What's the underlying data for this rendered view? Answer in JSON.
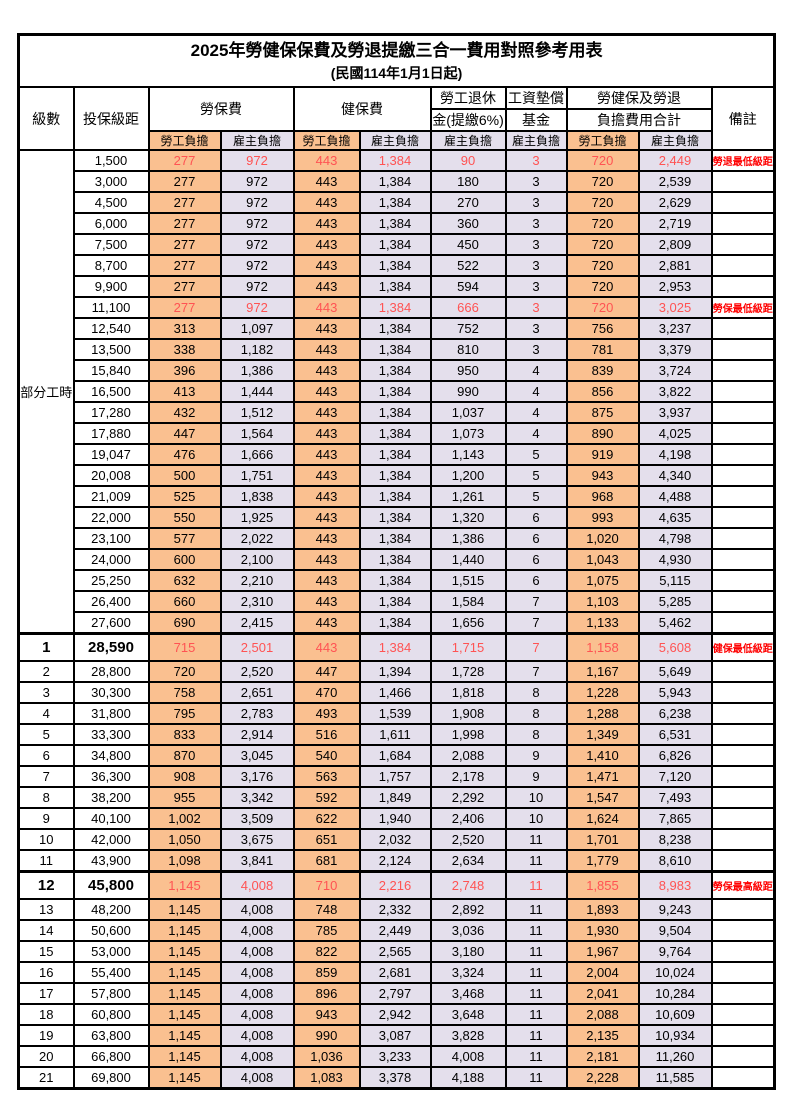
{
  "title": "2025年勞健保保費及勞退提繳三合一費用對照參考用表",
  "subtitle": "(民國114年1月1日起)",
  "columns": {
    "level": "級數",
    "bracket": "投保級距",
    "labor_insurance": "勞保費",
    "health_insurance": "健保費",
    "pension_line1": "勞工退休",
    "pension_line2": "金(提繳6%)",
    "wage_fund_line1": "工資墊償",
    "wage_fund_line2": "基金",
    "total_line1": "勞健保及勞退",
    "total_line2": "負擔費用合計",
    "note": "備註",
    "employee": "勞工負擔",
    "employer": "雇主負擔"
  },
  "part_time_label": "部分工時",
  "part_time_rowspan": 23,
  "colors": {
    "employee_bg": "#FAC090",
    "employer_bg": "#E4DFEC",
    "highlight_text": "#FF5353",
    "note_text": "#FF0000",
    "grid": "#000000"
  },
  "rows": [
    {
      "level": "",
      "bracket": "1,500",
      "values": [
        "277",
        "972",
        "443",
        "1,384",
        "90",
        "3",
        "720",
        "2,449"
      ],
      "note": "勞退最低級距",
      "highlight": true,
      "emphasis": false
    },
    {
      "level": "",
      "bracket": "3,000",
      "values": [
        "277",
        "972",
        "443",
        "1,384",
        "180",
        "3",
        "720",
        "2,539"
      ],
      "note": "",
      "highlight": false,
      "emphasis": false
    },
    {
      "level": "",
      "bracket": "4,500",
      "values": [
        "277",
        "972",
        "443",
        "1,384",
        "270",
        "3",
        "720",
        "2,629"
      ],
      "note": "",
      "highlight": false,
      "emphasis": false
    },
    {
      "level": "",
      "bracket": "6,000",
      "values": [
        "277",
        "972",
        "443",
        "1,384",
        "360",
        "3",
        "720",
        "2,719"
      ],
      "note": "",
      "highlight": false,
      "emphasis": false
    },
    {
      "level": "",
      "bracket": "7,500",
      "values": [
        "277",
        "972",
        "443",
        "1,384",
        "450",
        "3",
        "720",
        "2,809"
      ],
      "note": "",
      "highlight": false,
      "emphasis": false
    },
    {
      "level": "",
      "bracket": "8,700",
      "values": [
        "277",
        "972",
        "443",
        "1,384",
        "522",
        "3",
        "720",
        "2,881"
      ],
      "note": "",
      "highlight": false,
      "emphasis": false
    },
    {
      "level": "",
      "bracket": "9,900",
      "values": [
        "277",
        "972",
        "443",
        "1,384",
        "594",
        "3",
        "720",
        "2,953"
      ],
      "note": "",
      "highlight": false,
      "emphasis": false
    },
    {
      "level": "",
      "bracket": "11,100",
      "values": [
        "277",
        "972",
        "443",
        "1,384",
        "666",
        "3",
        "720",
        "3,025"
      ],
      "note": "勞保最低級距",
      "highlight": true,
      "emphasis": false
    },
    {
      "level": "",
      "bracket": "12,540",
      "values": [
        "313",
        "1,097",
        "443",
        "1,384",
        "752",
        "3",
        "756",
        "3,237"
      ],
      "note": "",
      "highlight": false,
      "emphasis": false
    },
    {
      "level": "",
      "bracket": "13,500",
      "values": [
        "338",
        "1,182",
        "443",
        "1,384",
        "810",
        "3",
        "781",
        "3,379"
      ],
      "note": "",
      "highlight": false,
      "emphasis": false
    },
    {
      "level": "",
      "bracket": "15,840",
      "values": [
        "396",
        "1,386",
        "443",
        "1,384",
        "950",
        "4",
        "839",
        "3,724"
      ],
      "note": "",
      "highlight": false,
      "emphasis": false
    },
    {
      "level": "",
      "bracket": "16,500",
      "values": [
        "413",
        "1,444",
        "443",
        "1,384",
        "990",
        "4",
        "856",
        "3,822"
      ],
      "note": "",
      "highlight": false,
      "emphasis": false
    },
    {
      "level": "",
      "bracket": "17,280",
      "values": [
        "432",
        "1,512",
        "443",
        "1,384",
        "1,037",
        "4",
        "875",
        "3,937"
      ],
      "note": "",
      "highlight": false,
      "emphasis": false
    },
    {
      "level": "",
      "bracket": "17,880",
      "values": [
        "447",
        "1,564",
        "443",
        "1,384",
        "1,073",
        "4",
        "890",
        "4,025"
      ],
      "note": "",
      "highlight": false,
      "emphasis": false
    },
    {
      "level": "",
      "bracket": "19,047",
      "values": [
        "476",
        "1,666",
        "443",
        "1,384",
        "1,143",
        "5",
        "919",
        "4,198"
      ],
      "note": "",
      "highlight": false,
      "emphasis": false
    },
    {
      "level": "",
      "bracket": "20,008",
      "values": [
        "500",
        "1,751",
        "443",
        "1,384",
        "1,200",
        "5",
        "943",
        "4,340"
      ],
      "note": "",
      "highlight": false,
      "emphasis": false
    },
    {
      "level": "",
      "bracket": "21,009",
      "values": [
        "525",
        "1,838",
        "443",
        "1,384",
        "1,261",
        "5",
        "968",
        "4,488"
      ],
      "note": "",
      "highlight": false,
      "emphasis": false
    },
    {
      "level": "",
      "bracket": "22,000",
      "values": [
        "550",
        "1,925",
        "443",
        "1,384",
        "1,320",
        "6",
        "993",
        "4,635"
      ],
      "note": "",
      "highlight": false,
      "emphasis": false
    },
    {
      "level": "",
      "bracket": "23,100",
      "values": [
        "577",
        "2,022",
        "443",
        "1,384",
        "1,386",
        "6",
        "1,020",
        "4,798"
      ],
      "note": "",
      "highlight": false,
      "emphasis": false
    },
    {
      "level": "",
      "bracket": "24,000",
      "values": [
        "600",
        "2,100",
        "443",
        "1,384",
        "1,440",
        "6",
        "1,043",
        "4,930"
      ],
      "note": "",
      "highlight": false,
      "emphasis": false
    },
    {
      "level": "",
      "bracket": "25,250",
      "values": [
        "632",
        "2,210",
        "443",
        "1,384",
        "1,515",
        "6",
        "1,075",
        "5,115"
      ],
      "note": "",
      "highlight": false,
      "emphasis": false
    },
    {
      "level": "",
      "bracket": "26,400",
      "values": [
        "660",
        "2,310",
        "443",
        "1,384",
        "1,584",
        "7",
        "1,103",
        "5,285"
      ],
      "note": "",
      "highlight": false,
      "emphasis": false
    },
    {
      "level": "",
      "bracket": "27,600",
      "values": [
        "690",
        "2,415",
        "443",
        "1,384",
        "1,656",
        "7",
        "1,133",
        "5,462"
      ],
      "note": "",
      "highlight": false,
      "emphasis": false
    },
    {
      "level": "1",
      "bracket": "28,590",
      "values": [
        "715",
        "2,501",
        "443",
        "1,384",
        "1,715",
        "7",
        "1,158",
        "5,608"
      ],
      "note": "健保最低級距",
      "highlight": true,
      "emphasis": true
    },
    {
      "level": "2",
      "bracket": "28,800",
      "values": [
        "720",
        "2,520",
        "447",
        "1,394",
        "1,728",
        "7",
        "1,167",
        "5,649"
      ],
      "note": "",
      "highlight": false,
      "emphasis": false
    },
    {
      "level": "3",
      "bracket": "30,300",
      "values": [
        "758",
        "2,651",
        "470",
        "1,466",
        "1,818",
        "8",
        "1,228",
        "5,943"
      ],
      "note": "",
      "highlight": false,
      "emphasis": false
    },
    {
      "level": "4",
      "bracket": "31,800",
      "values": [
        "795",
        "2,783",
        "493",
        "1,539",
        "1,908",
        "8",
        "1,288",
        "6,238"
      ],
      "note": "",
      "highlight": false,
      "emphasis": false
    },
    {
      "level": "5",
      "bracket": "33,300",
      "values": [
        "833",
        "2,914",
        "516",
        "1,611",
        "1,998",
        "8",
        "1,349",
        "6,531"
      ],
      "note": "",
      "highlight": false,
      "emphasis": false
    },
    {
      "level": "6",
      "bracket": "34,800",
      "values": [
        "870",
        "3,045",
        "540",
        "1,684",
        "2,088",
        "9",
        "1,410",
        "6,826"
      ],
      "note": "",
      "highlight": false,
      "emphasis": false
    },
    {
      "level": "7",
      "bracket": "36,300",
      "values": [
        "908",
        "3,176",
        "563",
        "1,757",
        "2,178",
        "9",
        "1,471",
        "7,120"
      ],
      "note": "",
      "highlight": false,
      "emphasis": false
    },
    {
      "level": "8",
      "bracket": "38,200",
      "values": [
        "955",
        "3,342",
        "592",
        "1,849",
        "2,292",
        "10",
        "1,547",
        "7,493"
      ],
      "note": "",
      "highlight": false,
      "emphasis": false
    },
    {
      "level": "9",
      "bracket": "40,100",
      "values": [
        "1,002",
        "3,509",
        "622",
        "1,940",
        "2,406",
        "10",
        "1,624",
        "7,865"
      ],
      "note": "",
      "highlight": false,
      "emphasis": false
    },
    {
      "level": "10",
      "bracket": "42,000",
      "values": [
        "1,050",
        "3,675",
        "651",
        "2,032",
        "2,520",
        "11",
        "1,701",
        "8,238"
      ],
      "note": "",
      "highlight": false,
      "emphasis": false
    },
    {
      "level": "11",
      "bracket": "43,900",
      "values": [
        "1,098",
        "3,841",
        "681",
        "2,124",
        "2,634",
        "11",
        "1,779",
        "8,610"
      ],
      "note": "",
      "highlight": false,
      "emphasis": false
    },
    {
      "level": "12",
      "bracket": "45,800",
      "values": [
        "1,145",
        "4,008",
        "710",
        "2,216",
        "2,748",
        "11",
        "1,855",
        "8,983"
      ],
      "note": "勞保最高級距",
      "highlight": true,
      "emphasis": true
    },
    {
      "level": "13",
      "bracket": "48,200",
      "values": [
        "1,145",
        "4,008",
        "748",
        "2,332",
        "2,892",
        "11",
        "1,893",
        "9,243"
      ],
      "note": "",
      "highlight": false,
      "emphasis": false
    },
    {
      "level": "14",
      "bracket": "50,600",
      "values": [
        "1,145",
        "4,008",
        "785",
        "2,449",
        "3,036",
        "11",
        "1,930",
        "9,504"
      ],
      "note": "",
      "highlight": false,
      "emphasis": false
    },
    {
      "level": "15",
      "bracket": "53,000",
      "values": [
        "1,145",
        "4,008",
        "822",
        "2,565",
        "3,180",
        "11",
        "1,967",
        "9,764"
      ],
      "note": "",
      "highlight": false,
      "emphasis": false
    },
    {
      "level": "16",
      "bracket": "55,400",
      "values": [
        "1,145",
        "4,008",
        "859",
        "2,681",
        "3,324",
        "11",
        "2,004",
        "10,024"
      ],
      "note": "",
      "highlight": false,
      "emphasis": false
    },
    {
      "level": "17",
      "bracket": "57,800",
      "values": [
        "1,145",
        "4,008",
        "896",
        "2,797",
        "3,468",
        "11",
        "2,041",
        "10,284"
      ],
      "note": "",
      "highlight": false,
      "emphasis": false
    },
    {
      "level": "18",
      "bracket": "60,800",
      "values": [
        "1,145",
        "4,008",
        "943",
        "2,942",
        "3,648",
        "11",
        "2,088",
        "10,609"
      ],
      "note": "",
      "highlight": false,
      "emphasis": false
    },
    {
      "level": "19",
      "bracket": "63,800",
      "values": [
        "1,145",
        "4,008",
        "990",
        "3,087",
        "3,828",
        "11",
        "2,135",
        "10,934"
      ],
      "note": "",
      "highlight": false,
      "emphasis": false
    },
    {
      "level": "20",
      "bracket": "66,800",
      "values": [
        "1,145",
        "4,008",
        "1,036",
        "3,233",
        "4,008",
        "11",
        "2,181",
        "11,260"
      ],
      "note": "",
      "highlight": false,
      "emphasis": false
    },
    {
      "level": "21",
      "bracket": "69,800",
      "values": [
        "1,145",
        "4,008",
        "1,083",
        "3,378",
        "4,188",
        "11",
        "2,228",
        "11,585"
      ],
      "note": "",
      "highlight": false,
      "emphasis": false
    }
  ],
  "value_column_kinds": [
    "emp",
    "er",
    "emp",
    "er",
    "er",
    "er",
    "emp",
    "er"
  ],
  "value_column_names": [
    "labor-employee-fee",
    "labor-employer-fee",
    "health-employee-fee",
    "health-employer-fee",
    "pension-employer-fee",
    "wage-arrears-fund-fee",
    "total-employee-fee",
    "total-employer-fee"
  ]
}
